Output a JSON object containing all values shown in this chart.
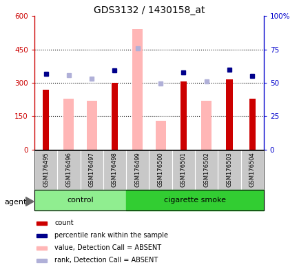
{
  "title": "GDS3132 / 1430158_at",
  "samples": [
    "GSM176495",
    "GSM176496",
    "GSM176497",
    "GSM176498",
    "GSM176499",
    "GSM176500",
    "GSM176501",
    "GSM176502",
    "GSM176503",
    "GSM176504"
  ],
  "count_values": [
    270,
    null,
    null,
    300,
    null,
    null,
    305,
    null,
    315,
    230
  ],
  "value_absent": [
    null,
    230,
    220,
    null,
    540,
    130,
    null,
    220,
    null,
    null
  ],
  "rank_absent_vals": [
    null,
    335,
    320,
    null,
    455,
    298,
    null,
    305,
    null,
    null
  ],
  "percentile_rank": [
    340,
    null,
    null,
    355,
    null,
    null,
    345,
    null,
    360,
    330
  ],
  "ylim_left": [
    0,
    600
  ],
  "ylim_right": [
    0,
    100
  ],
  "yticks_left": [
    0,
    150,
    300,
    450,
    600
  ],
  "ytick_labels_left": [
    "0",
    "150",
    "300",
    "450",
    "600"
  ],
  "ytick_labels_right": [
    "0",
    "25",
    "50",
    "75",
    "100%"
  ],
  "control_samples": 4,
  "control_label": "control",
  "smoke_label": "cigarette smoke",
  "agent_label": "agent",
  "legend_colors": [
    "#cc0000",
    "#00008b",
    "#ffb6b6",
    "#b0b0d8"
  ],
  "legend_labels": [
    "count",
    "percentile rank within the sample",
    "value, Detection Call = ABSENT",
    "rank, Detection Call = ABSENT"
  ],
  "pink_bar_color": "#ffb6b6",
  "red_bar_color": "#cc0000",
  "blue_sq_color": "#00008b",
  "lightblue_sq_color": "#b0b0d8",
  "control_bg": "#90ee90",
  "smoke_bg": "#32cd32",
  "tick_area_bg": "#c8c8c8"
}
